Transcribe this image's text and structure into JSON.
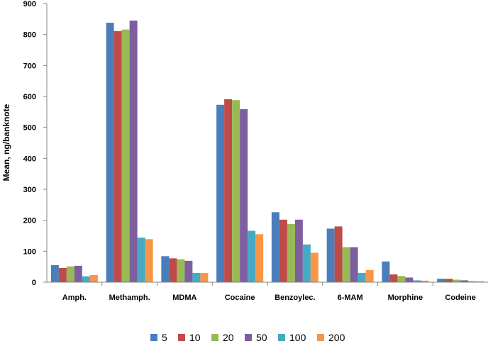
{
  "chart_data": {
    "type": "bar",
    "title": "",
    "xlabel": "",
    "ylabel": "Mean, ng/banknote",
    "ylim": [
      0,
      900
    ],
    "yticks": [
      0,
      100,
      200,
      300,
      400,
      500,
      600,
      700,
      800,
      900
    ],
    "grid": false,
    "legend_position": "bottom",
    "categories": [
      "Amph.",
      "Methamph.",
      "MDMA",
      "Cocaine",
      "Benzoylec.",
      "6-MAM",
      "Morphine",
      "Codeine"
    ],
    "series": [
      {
        "name": "5",
        "color": "#4a7ebb",
        "values": [
          55,
          838,
          84,
          573,
          226,
          173,
          67,
          11
        ]
      },
      {
        "name": "10",
        "color": "#be4b48",
        "values": [
          46,
          811,
          77,
          591,
          202,
          180,
          25,
          11
        ]
      },
      {
        "name": "20",
        "color": "#98b954",
        "values": [
          51,
          816,
          74,
          588,
          188,
          113,
          20,
          8
        ]
      },
      {
        "name": "50",
        "color": "#7d5fa0",
        "values": [
          53,
          845,
          69,
          559,
          202,
          113,
          15,
          6
        ]
      },
      {
        "name": "100",
        "color": "#46aac5",
        "values": [
          19,
          144,
          30,
          166,
          122,
          30,
          6,
          3
        ]
      },
      {
        "name": "200",
        "color": "#f79646",
        "values": [
          23,
          139,
          30,
          155,
          95,
          39,
          5,
          3
        ]
      }
    ]
  }
}
